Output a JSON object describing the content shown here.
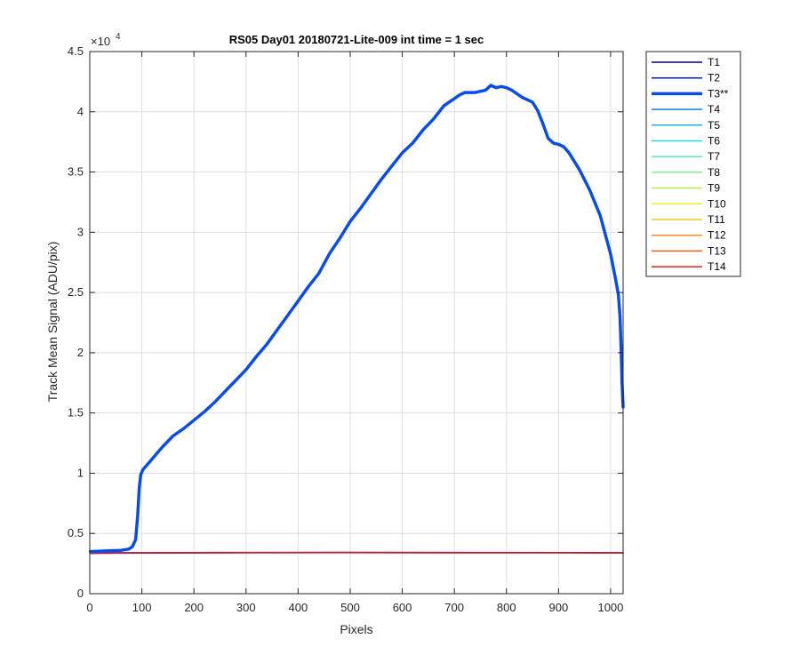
{
  "chart_data": {
    "type": "line",
    "title": "RS05 Day01 20180721-Lite-009 int time = 1 sec",
    "xlabel": "Pixels",
    "ylabel": "Track Mean Signal (ADU/pix)",
    "y_exponent_label": "×10",
    "y_exponent_power": "4",
    "xlim": [
      0,
      1024
    ],
    "ylim": [
      0,
      4.5
    ],
    "y_multiplier": 10000,
    "x_ticks": [
      0,
      100,
      200,
      300,
      400,
      500,
      600,
      700,
      800,
      900,
      1000
    ],
    "x_tick_labels": [
      "0",
      "100",
      "200",
      "300",
      "400",
      "500",
      "600",
      "700",
      "800",
      "900",
      "1000"
    ],
    "y_ticks": [
      0,
      0.5,
      1,
      1.5,
      2,
      2.5,
      3,
      3.5,
      4,
      4.5
    ],
    "y_tick_labels": [
      "0",
      "0.5",
      "1",
      "1.5",
      "2",
      "2.5",
      "3",
      "3.5",
      "4",
      "4.5"
    ],
    "grid": true,
    "legend_position": "outside-top-right",
    "legend": [
      {
        "name": "T1",
        "color": "#000080"
      },
      {
        "name": "T2",
        "color": "#0019d9"
      },
      {
        "name": "T3**",
        "color": "#0a4ce6",
        "thick": true
      },
      {
        "name": "T4",
        "color": "#1180e8"
      },
      {
        "name": "T5",
        "color": "#17b3e8"
      },
      {
        "name": "T6",
        "color": "#29d9e0"
      },
      {
        "name": "T7",
        "color": "#5ee8c8"
      },
      {
        "name": "T8",
        "color": "#88ee88"
      },
      {
        "name": "T9",
        "color": "#b8f040"
      },
      {
        "name": "T10",
        "color": "#f5f020"
      },
      {
        "name": "T11",
        "color": "#f5c81e"
      },
      {
        "name": "T12",
        "color": "#f59020"
      },
      {
        "name": "T13",
        "color": "#f55a1e"
      },
      {
        "name": "T14",
        "color": "#e61e14"
      }
    ],
    "series": [
      {
        "name": "T3**",
        "color": "#0a4ce6",
        "x": [
          1,
          30,
          60,
          75,
          82,
          88,
          92,
          95,
          98,
          102,
          110,
          120,
          140,
          160,
          180,
          200,
          220,
          240,
          260,
          280,
          300,
          320,
          340,
          360,
          380,
          400,
          420,
          440,
          460,
          480,
          500,
          520,
          540,
          560,
          580,
          600,
          620,
          640,
          660,
          680,
          700,
          710,
          720,
          740,
          760,
          770,
          780,
          790,
          800,
          810,
          820,
          830,
          840,
          850,
          860,
          870,
          880,
          890,
          900,
          910,
          920,
          940,
          960,
          980,
          1000,
          1010,
          1015,
          1018,
          1020,
          1022,
          1024
        ],
        "values": [
          0.35,
          0.355,
          0.36,
          0.37,
          0.39,
          0.45,
          0.65,
          0.88,
          0.99,
          1.03,
          1.07,
          1.12,
          1.22,
          1.31,
          1.37,
          1.44,
          1.51,
          1.59,
          1.68,
          1.77,
          1.86,
          1.97,
          2.07,
          2.19,
          2.31,
          2.43,
          2.55,
          2.66,
          2.82,
          2.95,
          3.09,
          3.2,
          3.32,
          3.44,
          3.55,
          3.66,
          3.74,
          3.85,
          3.94,
          4.05,
          4.11,
          4.14,
          4.16,
          4.16,
          4.18,
          4.22,
          4.2,
          4.21,
          4.2,
          4.18,
          4.15,
          4.12,
          4.1,
          4.08,
          4.01,
          3.9,
          3.78,
          3.74,
          3.73,
          3.71,
          3.66,
          3.52,
          3.35,
          3.14,
          2.82,
          2.6,
          2.48,
          2.3,
          2.05,
          1.75,
          1.55
        ]
      },
      {
        "name": "T1",
        "color": "#000080",
        "x": [
          1,
          100,
          300,
          500,
          700,
          900,
          1024
        ],
        "values": [
          0.335,
          0.338,
          0.34,
          0.341,
          0.34,
          0.34,
          0.338
        ]
      },
      {
        "name": "T2",
        "color": "#0019d9",
        "x": [
          1,
          100,
          300,
          500,
          700,
          900,
          1024
        ],
        "values": [
          0.34,
          0.34,
          0.342,
          0.343,
          0.342,
          0.341,
          0.34
        ]
      },
      {
        "name": "T14",
        "color": "#e61e14",
        "x": [
          1,
          100,
          300,
          500,
          700,
          900,
          1024
        ],
        "values": [
          0.338,
          0.339,
          0.34,
          0.34,
          0.339,
          0.339,
          0.338
        ]
      }
    ]
  }
}
